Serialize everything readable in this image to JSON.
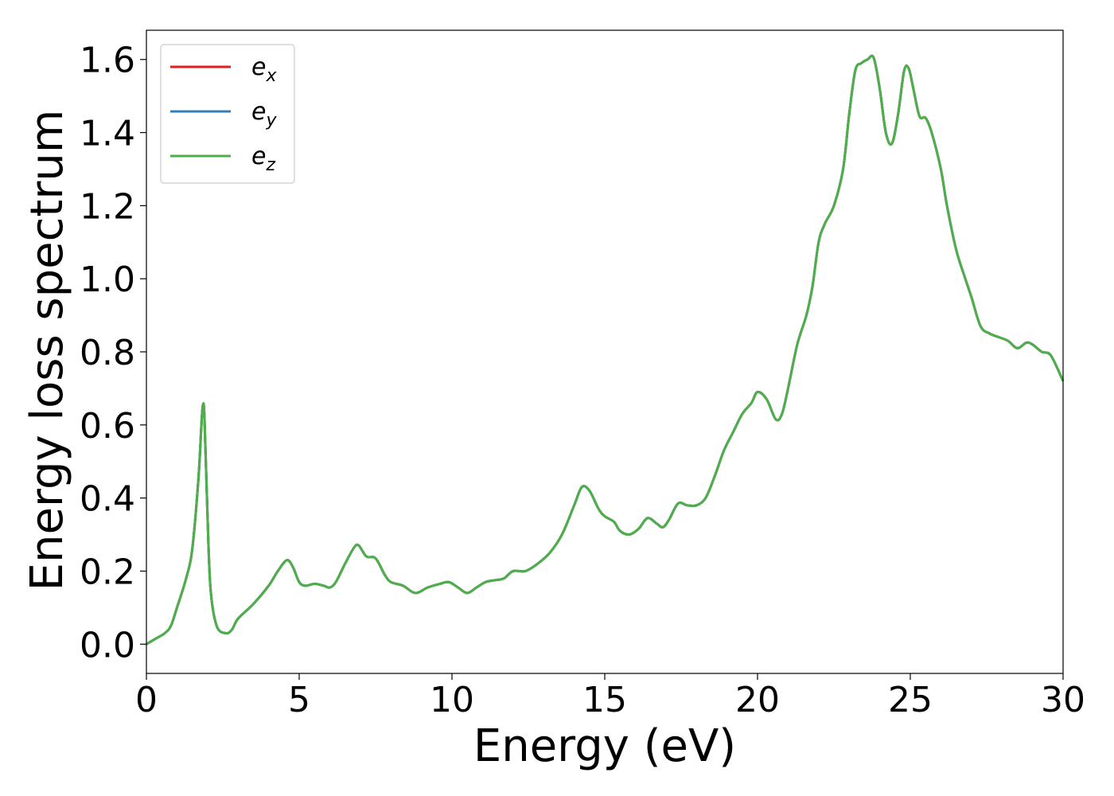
{
  "chart_data": {
    "type": "line",
    "title": "",
    "xlabel": "Energy (eV)",
    "ylabel": "Energy loss spectrum",
    "xlim": [
      0,
      30
    ],
    "ylim": [
      -0.08,
      1.68
    ],
    "xticks": [
      0,
      5,
      10,
      15,
      20,
      25,
      30
    ],
    "xtick_labels": [
      "0",
      "5",
      "10",
      "15",
      "20",
      "25",
      "30"
    ],
    "yticks": [
      0.0,
      0.2,
      0.4,
      0.6,
      0.8,
      1.0,
      1.2,
      1.4,
      1.6
    ],
    "ytick_labels": [
      "0.0",
      "0.2",
      "0.4",
      "0.6",
      "0.8",
      "1.0",
      "1.2",
      "1.4",
      "1.6"
    ],
    "grid": false,
    "legend_position": "top-left",
    "x": [
      0,
      0.3,
      0.6,
      0.8,
      1.0,
      1.3,
      1.5,
      1.7,
      1.8,
      1.85,
      1.9,
      2.0,
      2.1,
      2.3,
      2.6,
      2.8,
      3.0,
      3.5,
      4.0,
      4.3,
      4.6,
      4.8,
      5.0,
      5.2,
      5.5,
      5.8,
      6.0,
      6.2,
      6.5,
      6.8,
      6.95,
      7.2,
      7.5,
      7.8,
      8.0,
      8.4,
      8.8,
      9.2,
      9.6,
      9.9,
      10.2,
      10.5,
      10.8,
      11.1,
      11.4,
      11.7,
      12.0,
      12.4,
      12.8,
      13.2,
      13.6,
      14.0,
      14.25,
      14.5,
      14.8,
      15.0,
      15.3,
      15.5,
      15.8,
      16.1,
      16.4,
      16.7,
      16.9,
      17.1,
      17.4,
      17.7,
      18.0,
      18.3,
      18.6,
      18.9,
      19.2,
      19.5,
      19.8,
      20.0,
      20.3,
      20.6,
      20.8,
      21.0,
      21.3,
      21.6,
      21.8,
      22.0,
      22.2,
      22.5,
      22.8,
      23.0,
      23.2,
      23.4,
      23.6,
      23.8,
      24.0,
      24.2,
      24.4,
      24.6,
      24.8,
      24.95,
      25.1,
      25.3,
      25.5,
      25.7,
      26.0,
      26.2,
      26.5,
      26.8,
      27.0,
      27.3,
      27.6,
      27.9,
      28.2,
      28.5,
      28.8,
      29.0,
      29.3,
      29.6,
      30.0
    ],
    "series": [
      {
        "name": "e_x",
        "color": "#e41a1c"
      },
      {
        "name": "e_y",
        "color": "#377eb8"
      },
      {
        "name": "e_z",
        "color": "#4daf4a"
      }
    ],
    "y": [
      0.0,
      0.015,
      0.03,
      0.05,
      0.1,
      0.18,
      0.26,
      0.45,
      0.6,
      0.655,
      0.62,
      0.35,
      0.15,
      0.05,
      0.03,
      0.04,
      0.07,
      0.11,
      0.16,
      0.2,
      0.23,
      0.21,
      0.17,
      0.16,
      0.165,
      0.16,
      0.155,
      0.17,
      0.22,
      0.265,
      0.27,
      0.24,
      0.235,
      0.19,
      0.17,
      0.16,
      0.14,
      0.155,
      0.165,
      0.17,
      0.155,
      0.14,
      0.155,
      0.17,
      0.175,
      0.18,
      0.2,
      0.2,
      0.22,
      0.25,
      0.3,
      0.38,
      0.43,
      0.42,
      0.37,
      0.35,
      0.335,
      0.31,
      0.3,
      0.315,
      0.345,
      0.33,
      0.32,
      0.34,
      0.385,
      0.38,
      0.38,
      0.4,
      0.46,
      0.53,
      0.58,
      0.63,
      0.66,
      0.69,
      0.67,
      0.615,
      0.63,
      0.7,
      0.82,
      0.9,
      0.98,
      1.1,
      1.15,
      1.2,
      1.3,
      1.45,
      1.57,
      1.59,
      1.6,
      1.605,
      1.52,
      1.4,
      1.37,
      1.45,
      1.57,
      1.575,
      1.52,
      1.445,
      1.44,
      1.4,
      1.3,
      1.2,
      1.08,
      1.0,
      0.95,
      0.87,
      0.85,
      0.84,
      0.83,
      0.81,
      0.825,
      0.82,
      0.8,
      0.79,
      0.72
    ],
    "legend_entries": [
      "e",
      "e",
      "e"
    ],
    "legend_subscripts": [
      "x",
      "y",
      "z"
    ]
  }
}
